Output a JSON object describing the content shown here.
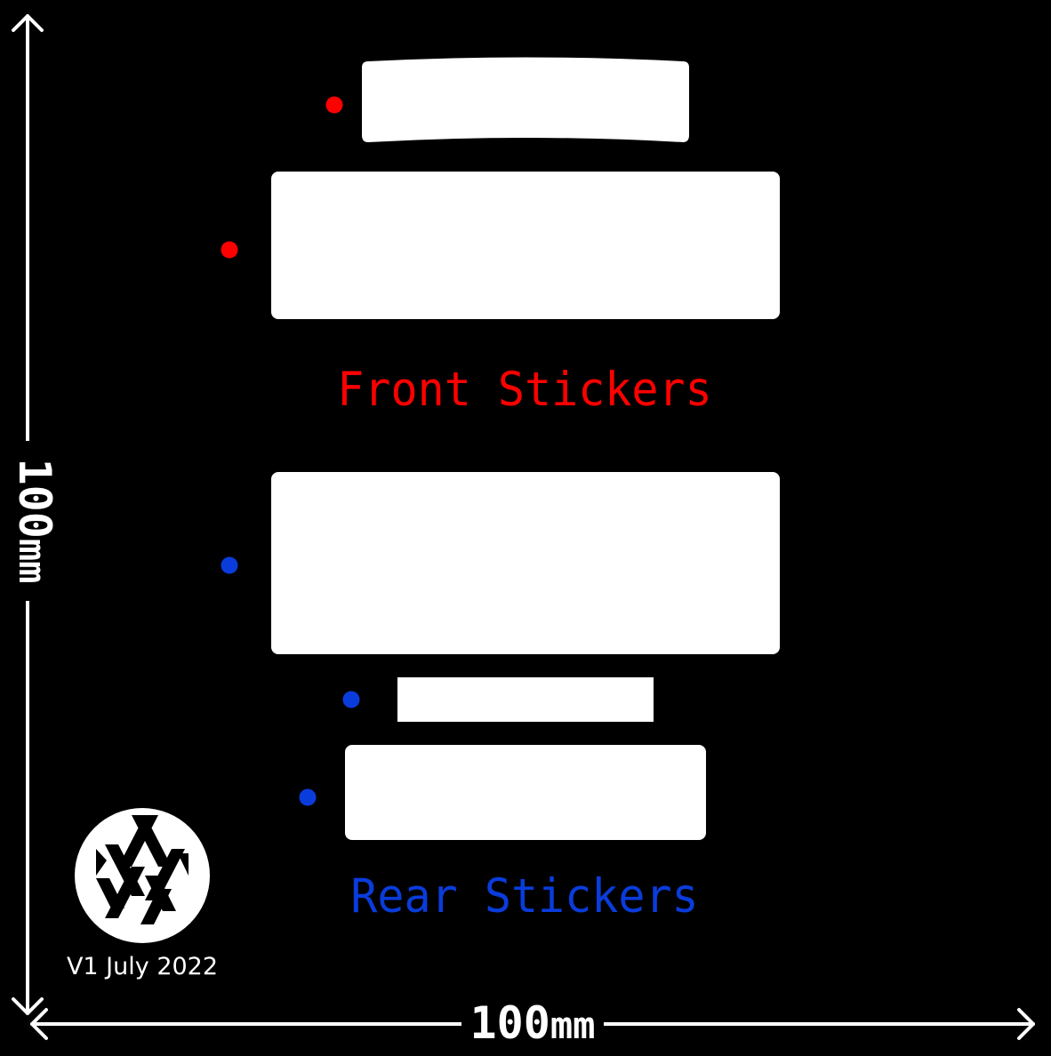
{
  "colors": {
    "background": "#000000",
    "sticker": "#ffffff",
    "front": "#ff0000",
    "rear": "#0a3cdc",
    "dimension": "#ffffff"
  },
  "front": {
    "label": "Front Stickers"
  },
  "rear": {
    "label": "Rear Stickers"
  },
  "dimensions": {
    "width_value": "100",
    "width_unit": "mm",
    "height_value": "100",
    "height_unit": "mm"
  },
  "footer": {
    "version": "V1 July 2022",
    "logo_icon": "diamond-lattice-logo-icon"
  }
}
